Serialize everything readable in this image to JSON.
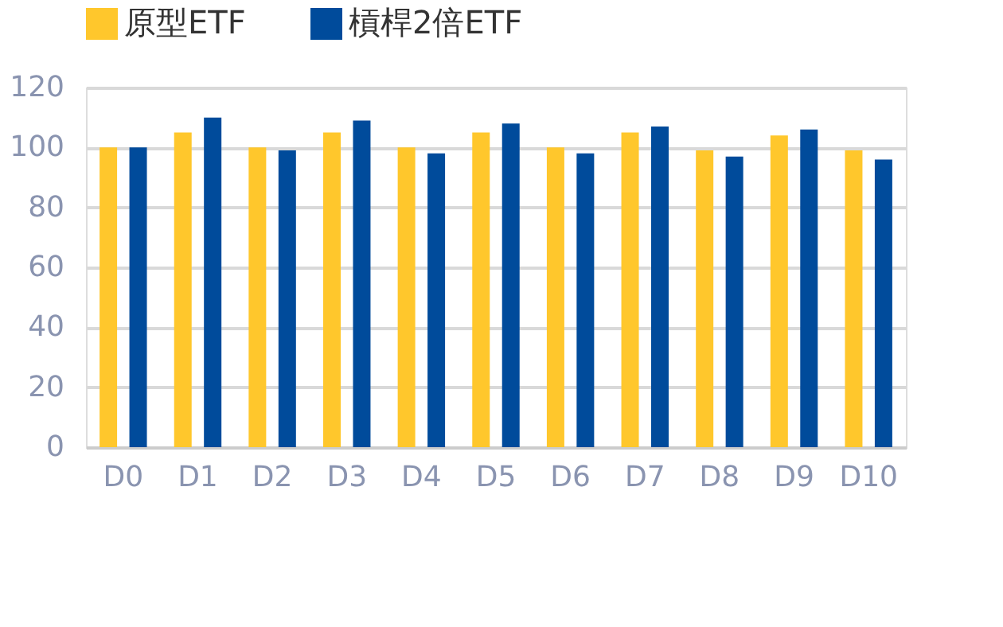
{
  "chart_data": {
    "type": "bar",
    "categories": [
      "D0",
      "D1",
      "D2",
      "D3",
      "D4",
      "D5",
      "D6",
      "D7",
      "D8",
      "D9",
      "D10"
    ],
    "series": [
      {
        "name": "原型ETF",
        "color": "#ffc72c",
        "values": [
          100,
          105,
          100,
          105,
          100,
          105,
          100,
          105,
          99,
          104,
          99
        ]
      },
      {
        "name": "槓桿2倍ETF",
        "color": "#004b9b",
        "values": [
          100,
          110,
          99,
          109,
          98,
          108,
          98,
          107,
          97,
          106,
          96
        ]
      }
    ],
    "ylim": [
      0,
      120
    ],
    "yticks": [
      0,
      20,
      40,
      60,
      80,
      100,
      120
    ],
    "grid": "y",
    "legend": "top"
  }
}
